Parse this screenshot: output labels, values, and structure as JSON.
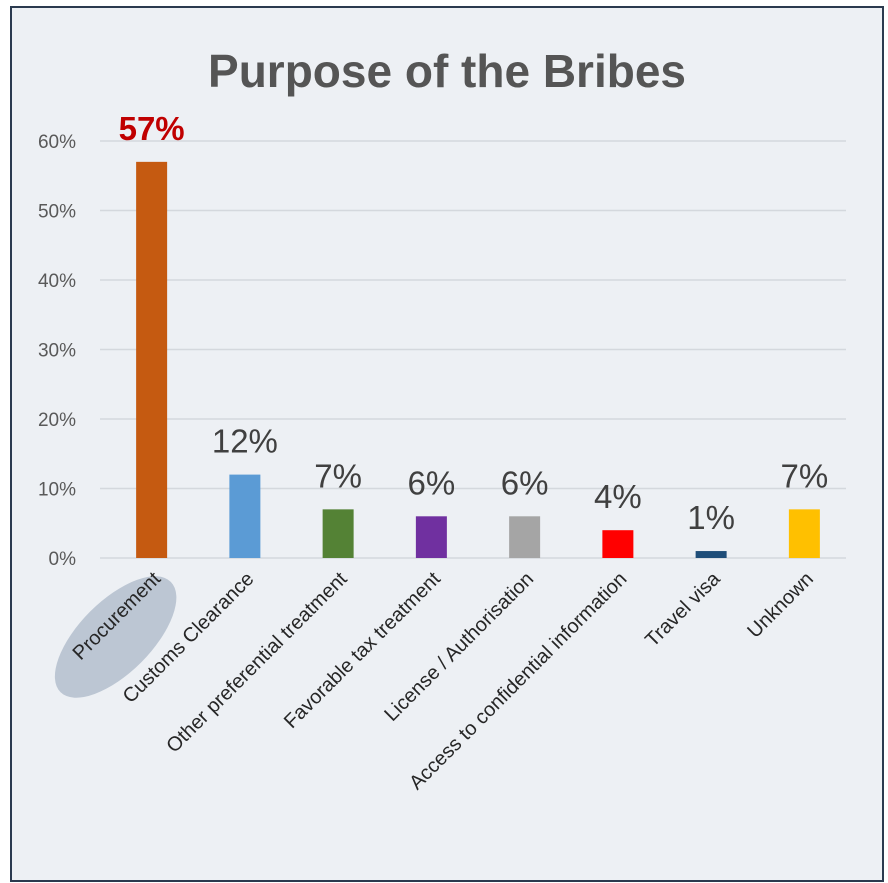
{
  "chart_data": {
    "type": "bar",
    "title": "Purpose of the Bribes",
    "categories": [
      "Procurement",
      "Customs Clearance",
      "Other preferential treatment",
      "Favorable tax treatment",
      "License / Authorisation",
      "Access to confidential information",
      "Travel visa",
      "Unknown"
    ],
    "values": [
      57,
      12,
      7,
      6,
      6,
      4,
      1,
      7
    ],
    "data_labels": [
      "57%",
      "12%",
      "7%",
      "6%",
      "6%",
      "4%",
      "1%",
      "7%"
    ],
    "colors": [
      "#c55a11",
      "#5b9bd5",
      "#548235",
      "#7030a0",
      "#a5a5a5",
      "#ff0000",
      "#1f4e79",
      "#ffc000"
    ],
    "ylim": [
      0,
      60
    ],
    "yticks": [
      0,
      10,
      20,
      30,
      40,
      50,
      60
    ],
    "ytick_labels": [
      "0%",
      "10%",
      "20%",
      "30%",
      "40%",
      "50%",
      "60%"
    ],
    "grid": true,
    "highlight_category": "Procurement",
    "highlight_label_color": "#c00000",
    "highlight_ellipse_color": "#bcc6d3"
  }
}
